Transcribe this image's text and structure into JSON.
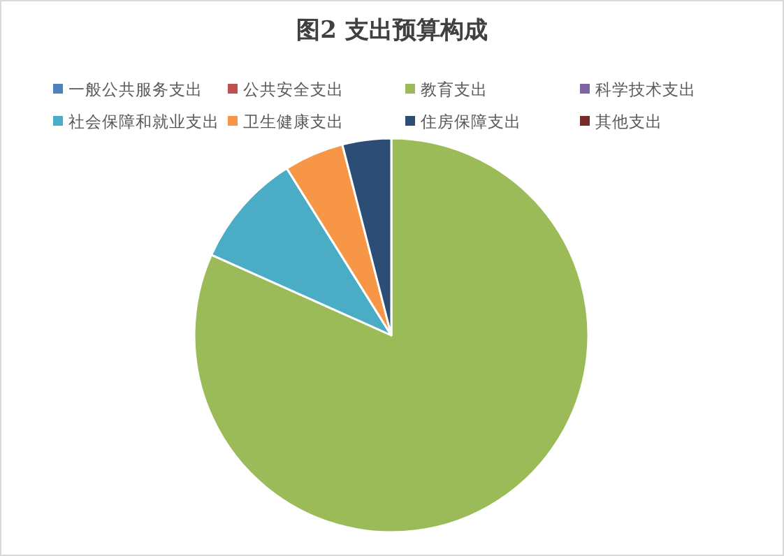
{
  "chart_data": {
    "type": "pie",
    "title": "图2  支出预算构成",
    "categories": [
      "一般公共服务支出",
      "公共安全支出",
      "教育支出",
      "科学技术支出",
      "社会保障和就业支出",
      "卫生健康支出",
      "住房保障支出",
      "其他支出"
    ],
    "values": [
      0,
      0,
      81.7,
      0,
      9.4,
      4.9,
      4.0,
      0
    ],
    "colors": [
      "#4f81bd",
      "#c0504d",
      "#9bbb59",
      "#8064a2",
      "#4bacc6",
      "#f79646",
      "#2c4d75",
      "#772c2a"
    ],
    "legend": "top"
  }
}
